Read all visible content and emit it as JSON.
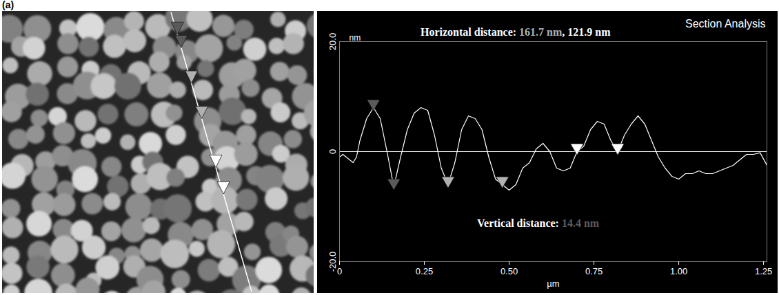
{
  "panel": "(a)",
  "chart_data": {
    "type": "line",
    "title": "Section Analysis",
    "x_label": "µm",
    "y_label": "nm",
    "x": [
      0,
      0.01,
      0.02,
      0.04,
      0.05,
      0.06,
      0.08,
      0.1,
      0.12,
      0.14,
      0.16,
      0.18,
      0.2,
      0.22,
      0.24,
      0.26,
      0.28,
      0.3,
      0.32,
      0.34,
      0.36,
      0.38,
      0.4,
      0.42,
      0.44,
      0.46,
      0.48,
      0.5,
      0.52,
      0.54,
      0.56,
      0.58,
      0.6,
      0.62,
      0.64,
      0.66,
      0.68,
      0.7,
      0.72,
      0.74,
      0.76,
      0.78,
      0.8,
      0.82,
      0.84,
      0.86,
      0.88,
      0.9,
      0.92,
      0.94,
      0.96,
      0.98,
      1.0,
      1.02,
      1.04,
      1.06,
      1.08,
      1.1,
      1.12,
      1.14,
      1.16,
      1.18,
      1.2,
      1.22,
      1.24,
      1.26
    ],
    "values": [
      -1,
      -0.5,
      -1,
      -2,
      -1,
      2,
      6,
      8,
      6,
      0,
      -6.4,
      -1,
      4,
      7,
      8,
      7.5,
      3,
      -3,
      -6,
      -2,
      4,
      6.5,
      6,
      4,
      -1,
      -5,
      -6,
      -7,
      -6,
      -3,
      -2,
      0.5,
      1.5,
      0,
      -3,
      -3.5,
      -3,
      0,
      1,
      4,
      5.5,
      5,
      2,
      0,
      3,
      5,
      6.5,
      5,
      2,
      -1,
      -3,
      -4.5,
      -5,
      -4,
      -4,
      -3.5,
      -4,
      -4,
      -3.5,
      -3,
      -2.5,
      -1.5,
      -0.5,
      -0.5,
      -0.2,
      -2.5
    ],
    "color": "#ffffff",
    "xlim": [
      0,
      1.26
    ],
    "ylim": [
      -20,
      20
    ],
    "xticks": [
      0,
      {
        "value": 0.25,
        "label": "0.25"
      },
      {
        "value": 0.5,
        "label": "0.50"
      },
      {
        "value": 0.75,
        "label": "0.75"
      },
      {
        "value": 1,
        "label": "1.00"
      },
      {
        "value": 1.25,
        "label": "1.25"
      }
    ],
    "yticks": [
      {
        "value": -20,
        "label": "-20.0"
      },
      0,
      {
        "value": 20,
        "label": "20.0"
      }
    ],
    "cursors": [
      {
        "color": "#5a5a5a",
        "points": [
          [
            0.1,
            8
          ],
          [
            0.16,
            -6.4
          ]
        ]
      },
      {
        "color": "#b0b0b0",
        "points": [
          [
            0.32,
            -6
          ],
          [
            0.48,
            -6
          ]
        ]
      },
      {
        "color": "#ffffff",
        "points": [
          [
            0.7,
            0
          ],
          [
            0.82,
            0
          ]
        ]
      }
    ],
    "annotations": [
      {
        "segments": [
          {
            "text": "Horizontal distance: ",
            "color": "#ffffff"
          },
          {
            "text": "161.7 nm",
            "color": "#b0b0b0"
          },
          {
            "text": ", ",
            "color": "#ffffff"
          },
          {
            "text": "121.9 nm",
            "color": "#ffffff"
          }
        ]
      },
      {
        "segments": [
          {
            "text": "Vertical distance: ",
            "color": "#ffffff"
          },
          {
            "text": "14.4 nm",
            "color": "#5a5a5a"
          }
        ]
      }
    ]
  }
}
